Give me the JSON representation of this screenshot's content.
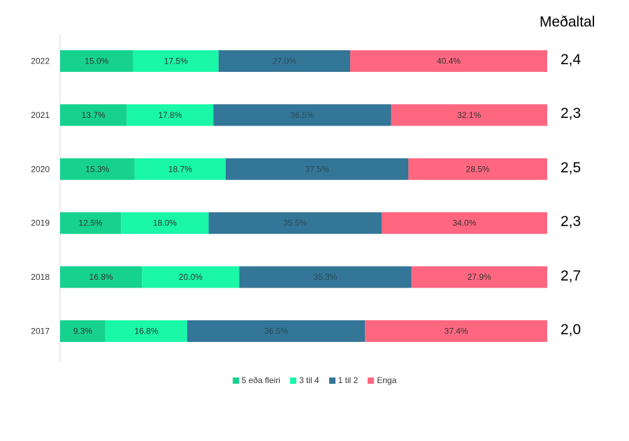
{
  "avg_header": "Meðaltal",
  "chart_data": {
    "type": "bar",
    "orientation": "horizontal",
    "stacked": true,
    "categories": [
      "2022",
      "2021",
      "2020",
      "2019",
      "2018",
      "2017"
    ],
    "series": [
      {
        "name": "5 eða fleiri",
        "color": "#17d28f",
        "values": [
          15.0,
          13.7,
          15.3,
          12.5,
          16.8,
          9.3
        ],
        "labels": [
          "15.0%",
          "13.7%",
          "15.3%",
          "12.5%",
          "16.8%",
          "9.3%"
        ]
      },
      {
        "name": "3 til 4",
        "color": "#19f7a7",
        "values": [
          17.5,
          17.8,
          18.7,
          18.0,
          20.0,
          16.8
        ],
        "labels": [
          "17.5%",
          "17.8%",
          "18.7%",
          "18.0%",
          "20.0%",
          "16.8%"
        ]
      },
      {
        "name": "1 til 2",
        "color": "#337697",
        "values": [
          27.0,
          36.5,
          37.5,
          35.5,
          35.3,
          36.5
        ],
        "labels": [
          "27.0%",
          "36.5%",
          "37.5%",
          "35.5%",
          "35.3%",
          "36.5%"
        ]
      },
      {
        "name": "Enga",
        "color": "#ff6781",
        "values": [
          40.4,
          32.1,
          28.5,
          34.0,
          27.9,
          37.4
        ],
        "labels": [
          "40.4%",
          "32.1%",
          "28.5%",
          "34.0%",
          "27.9%",
          "37.4%"
        ]
      }
    ],
    "averages": [
      "2,4",
      "2,3",
      "2,5",
      "2,3",
      "2,7",
      "2,0"
    ],
    "xlim": [
      0,
      100
    ],
    "grid": false,
    "legend_position": "bottom"
  }
}
